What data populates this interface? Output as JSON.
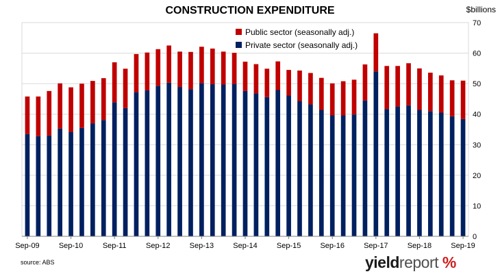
{
  "title": "CONSTRUCTION EXPENDITURE",
  "unit_label": "$billions",
  "source": "source: ABS",
  "brand": {
    "part1": "yield",
    "part2": "report",
    "symbol": "%"
  },
  "colors": {
    "private": "#002060",
    "public": "#c00000",
    "grid": "#d9d9d9",
    "axis": "#7f7f7f"
  },
  "chart_data": {
    "type": "bar",
    "stacked": true,
    "title": "CONSTRUCTION EXPENDITURE",
    "ylabel": "$billions",
    "ylim": [
      0,
      70
    ],
    "yticks": [
      0,
      10,
      20,
      30,
      40,
      50,
      60,
      70
    ],
    "y_axis_side": "right",
    "grid": true,
    "legend_position": "top-center",
    "categories": [
      "Sep-09",
      "Dec-09",
      "Mar-10",
      "Jun-10",
      "Sep-10",
      "Dec-10",
      "Mar-11",
      "Jun-11",
      "Sep-11",
      "Dec-11",
      "Mar-12",
      "Jun-12",
      "Sep-12",
      "Dec-12",
      "Mar-13",
      "Jun-13",
      "Sep-13",
      "Dec-13",
      "Mar-14",
      "Jun-14",
      "Sep-14",
      "Dec-14",
      "Mar-15",
      "Jun-15",
      "Sep-15",
      "Dec-15",
      "Mar-16",
      "Jun-16",
      "Sep-16",
      "Dec-16",
      "Mar-17",
      "Jun-17",
      "Sep-17",
      "Dec-17",
      "Mar-18",
      "Jun-18",
      "Sep-18",
      "Dec-18",
      "Mar-19",
      "Jun-19",
      "Sep-19"
    ],
    "x_tick_labels": [
      "Sep-09",
      "Sep-10",
      "Sep-11",
      "Sep-12",
      "Sep-13",
      "Sep-14",
      "Sep-15",
      "Sep-16",
      "Sep-17",
      "Sep-18",
      "Sep-19"
    ],
    "series": [
      {
        "name": "Private sector (seasonally adj.)",
        "color": "#002060",
        "values": [
          33.5,
          32.8,
          33.0,
          35.3,
          34.2,
          35.5,
          37.0,
          38.1,
          43.9,
          42.0,
          47.2,
          47.8,
          49.3,
          50.3,
          48.9,
          48.2,
          50.2,
          49.8,
          49.7,
          49.9,
          47.6,
          46.8,
          45.6,
          47.9,
          46.1,
          44.3,
          43.2,
          41.4,
          39.6,
          39.6,
          39.9,
          44.5,
          54.0,
          41.7,
          42.5,
          42.9,
          41.4,
          41.0,
          40.5,
          39.3,
          38.4
        ]
      },
      {
        "name": "Public sector (seasonally adj.)",
        "color": "#c00000",
        "values": [
          12.3,
          13.0,
          14.6,
          14.8,
          14.6,
          14.5,
          13.9,
          13.7,
          13.1,
          12.9,
          12.5,
          12.4,
          12.0,
          12.2,
          11.6,
          12.2,
          11.9,
          11.7,
          10.8,
          10.2,
          9.6,
          9.6,
          9.3,
          9.4,
          8.4,
          10.0,
          10.3,
          10.5,
          10.5,
          11.2,
          11.4,
          11.8,
          12.5,
          14.1,
          13.3,
          13.8,
          13.6,
          12.6,
          12.2,
          11.8,
          12.6
        ]
      }
    ]
  }
}
